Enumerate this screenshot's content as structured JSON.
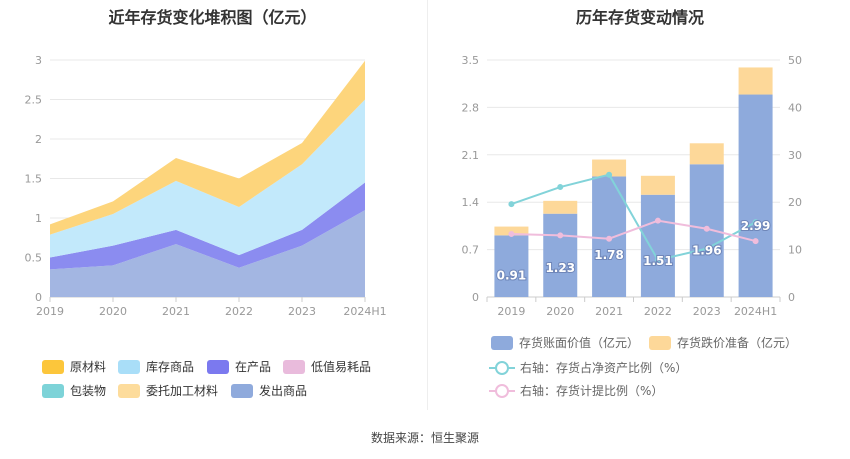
{
  "left_title": "近年存货变化堆积图（亿元）",
  "right_title": "历年存货变动情况",
  "source": "数据来源：恒生聚源",
  "chart_data": [
    {
      "type": "area",
      "stacked": true,
      "title": "近年存货变化堆积图（亿元）",
      "x": [
        "2019",
        "2020",
        "2021",
        "2022",
        "2023",
        "2024H1"
      ],
      "ylim": [
        0,
        3
      ],
      "yticks": [
        "0",
        "0.5",
        "1",
        "1.5",
        "2",
        "2.5",
        "3"
      ],
      "grid": true,
      "legend_position": "bottom",
      "series": [
        {
          "name": "发出商品",
          "color": "#a3b6e2",
          "values": [
            0.35,
            0.4,
            0.67,
            0.37,
            0.65,
            1.1
          ]
        },
        {
          "name": "在产品",
          "color": "#8b8cf0",
          "values": [
            0.15,
            0.25,
            0.18,
            0.16,
            0.2,
            0.35
          ]
        },
        {
          "name": "库存商品",
          "color": "#c2e9fb",
          "values": [
            0.29,
            0.4,
            0.62,
            0.61,
            0.83,
            1.05
          ]
        },
        {
          "name": "原材料",
          "color": "#fdd57c",
          "values": [
            0.13,
            0.16,
            0.29,
            0.36,
            0.27,
            0.49
          ]
        },
        {
          "name": "包装物",
          "color": "#7dd3d8",
          "values": [
            0,
            0,
            0,
            0,
            0,
            0
          ]
        },
        {
          "name": "低值易耗品",
          "color": "#e9bbdc",
          "values": [
            0,
            0,
            0,
            0,
            0,
            0
          ]
        },
        {
          "name": "委托加工材料",
          "color": "#fddc9c",
          "values": [
            0,
            0,
            0,
            0,
            0,
            0
          ]
        }
      ],
      "legend": [
        {
          "name": "原材料",
          "color": "#fcc63b"
        },
        {
          "name": "库存商品",
          "color": "#a9def8"
        },
        {
          "name": "在产品",
          "color": "#7b79ef"
        },
        {
          "name": "低值易耗品",
          "color": "#e9bbdc"
        },
        {
          "name": "包装物",
          "color": "#7dd3d8"
        },
        {
          "name": "委托加工材料",
          "color": "#fddc9c"
        },
        {
          "name": "发出商品",
          "color": "#8faadc"
        }
      ]
    },
    {
      "type": "bar",
      "stacked": true,
      "title": "历年存货变动情况",
      "categories": [
        "2019",
        "2020",
        "2021",
        "2022",
        "2023",
        "2024H1"
      ],
      "ylim": [
        0,
        3.5
      ],
      "yticks": [
        "0",
        "0.7",
        "1.4",
        "2.1",
        "2.8",
        "3.5"
      ],
      "y2lim": [
        0,
        50
      ],
      "y2ticks": [
        "0",
        "10",
        "20",
        "30",
        "40",
        "50"
      ],
      "grid": true,
      "legend_position": "bottom",
      "series": [
        {
          "name": "存货账面价值（亿元）",
          "color": "#8eaadc",
          "values": [
            0.91,
            1.23,
            1.78,
            1.51,
            1.96,
            2.99
          ],
          "labels": [
            "0.91",
            "1.23",
            "1.78",
            "1.51",
            "1.96",
            "2.99"
          ]
        },
        {
          "name": "存货跌价准备（亿元）",
          "color": "#fdd899",
          "values": [
            0.13,
            0.19,
            0.25,
            0.28,
            0.31,
            0.4
          ]
        }
      ],
      "lines": [
        {
          "name": "右轴：存货占净资产比例（%）",
          "color": "#82d3d9",
          "axis": "right",
          "values": [
            19.6,
            23.2,
            25.8,
            7.8,
            10.2,
            15.8
          ]
        },
        {
          "name": "右轴：存货计提比例（%）",
          "color": "#f0bddc",
          "axis": "right",
          "values": [
            13.3,
            13.0,
            12.3,
            16.1,
            14.4,
            11.8
          ]
        }
      ]
    }
  ]
}
